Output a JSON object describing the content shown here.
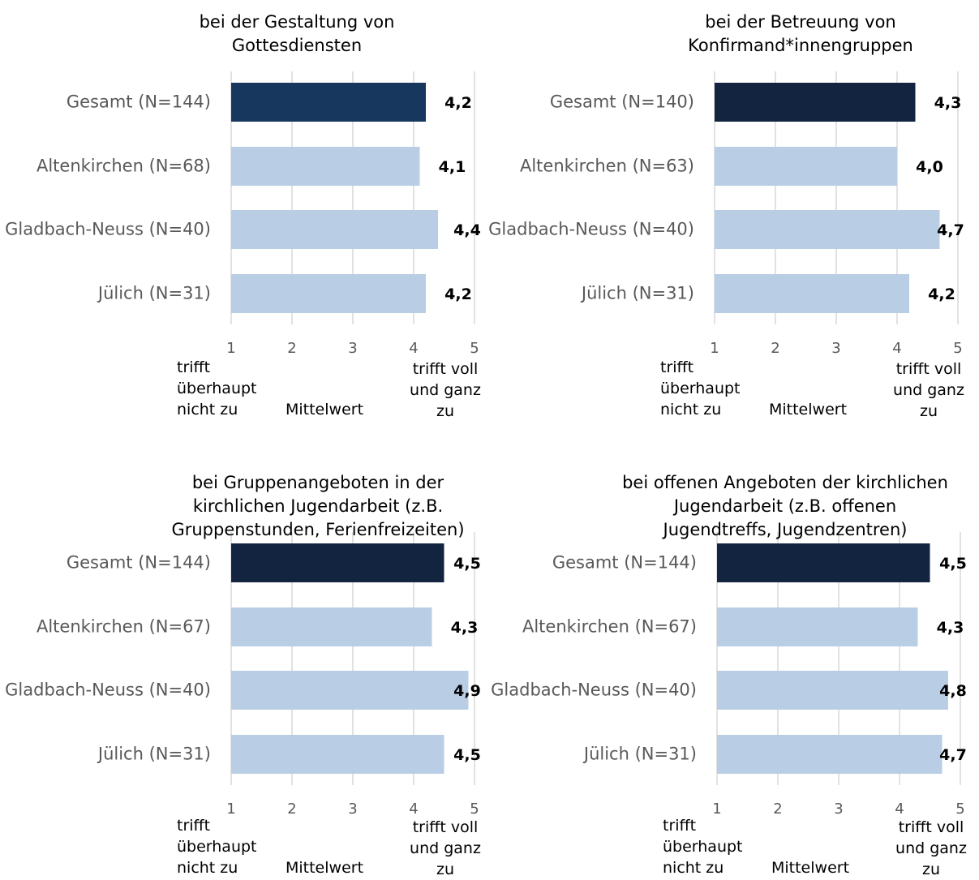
{
  "chart_data": [
    {
      "type": "bar",
      "title": [
        "bei der Gestaltung von",
        "Gottesdiensten"
      ],
      "categories": [
        "Gesamt (N=144)",
        "Altenkirchen (N=68)",
        "Gladbach-Neuss (N=40)",
        "Jülich (N=31)"
      ],
      "values": [
        4.2,
        4.1,
        4.4,
        4.2
      ],
      "value_labels": [
        "4,2",
        "4,1",
        "4,4",
        "4,2"
      ],
      "colors": [
        "#17375e",
        "#b9cde5",
        "#b9cde5",
        "#b9cde5"
      ],
      "xlim": [
        1,
        5
      ],
      "xticks": [
        1,
        2,
        3,
        4,
        5
      ],
      "grid": true,
      "axis_labels": [
        "trifft überhaupt nicht zu",
        "Mittelwert",
        "trifft voll und ganz zu"
      ]
    },
    {
      "type": "bar",
      "title": [
        "bei der Betreuung von",
        "Konfirmand*innengruppen"
      ],
      "categories": [
        "Gesamt (N=140)",
        "Altenkirchen (N=63)",
        "Gladbach-Neuss (N=40)",
        "Jülich (N=31)"
      ],
      "values": [
        4.3,
        4.0,
        4.7,
        4.2
      ],
      "value_labels": [
        "4,3",
        "4,0",
        "4,7",
        "4,2"
      ],
      "colors": [
        "#12243f",
        "#b9cde5",
        "#b9cde5",
        "#b9cde5"
      ],
      "xlim": [
        1,
        5
      ],
      "xticks": [
        1,
        2,
        3,
        4,
        5
      ],
      "grid": true,
      "axis_labels": [
        "trifft überhaupt nicht zu",
        "Mittelwert",
        "trifft voll und ganz zu"
      ]
    },
    {
      "type": "bar",
      "title": [
        "bei Gruppenangeboten in der",
        "kirchlichen Jugendarbeit (z.B.",
        "Gruppenstunden, Ferienfreizeiten)"
      ],
      "categories": [
        "Gesamt (N=144)",
        "Altenkirchen (N=67)",
        "Gladbach-Neuss (N=40)",
        "Jülich (N=31)"
      ],
      "values": [
        4.5,
        4.3,
        4.9,
        4.5
      ],
      "value_labels": [
        "4,5",
        "4,3",
        "4,9",
        "4,5"
      ],
      "colors": [
        "#12243f",
        "#b9cde5",
        "#b9cde5",
        "#b9cde5"
      ],
      "xlim": [
        1,
        5
      ],
      "xticks": [
        1,
        2,
        3,
        4,
        5
      ],
      "grid": true,
      "axis_labels": [
        "trifft überhaupt nicht zu",
        "Mittelwert",
        "trifft voll und ganz zu"
      ]
    },
    {
      "type": "bar",
      "title": [
        "bei offenen Angeboten der kirchlichen",
        "Jugendarbeit (z.B. offenen",
        "Jugendtreffs, Jugendzentren)"
      ],
      "categories": [
        "Gesamt (N=144)",
        "Altenkirchen (N=67)",
        "Gladbach-Neuss (N=40)",
        "Jülich (N=31)"
      ],
      "values": [
        4.5,
        4.3,
        4.8,
        4.7
      ],
      "value_labels": [
        "4,5",
        "4,3",
        "4,8",
        "4,7"
      ],
      "colors": [
        "#12243f",
        "#b9cde5",
        "#b9cde5",
        "#b9cde5"
      ],
      "xlim": [
        1,
        5
      ],
      "xticks": [
        1,
        2,
        3,
        4,
        5
      ],
      "grid": true,
      "axis_labels": [
        "trifft überhaupt nicht zu",
        "Mittelwert",
        "trifft voll und ganz zu"
      ]
    }
  ]
}
